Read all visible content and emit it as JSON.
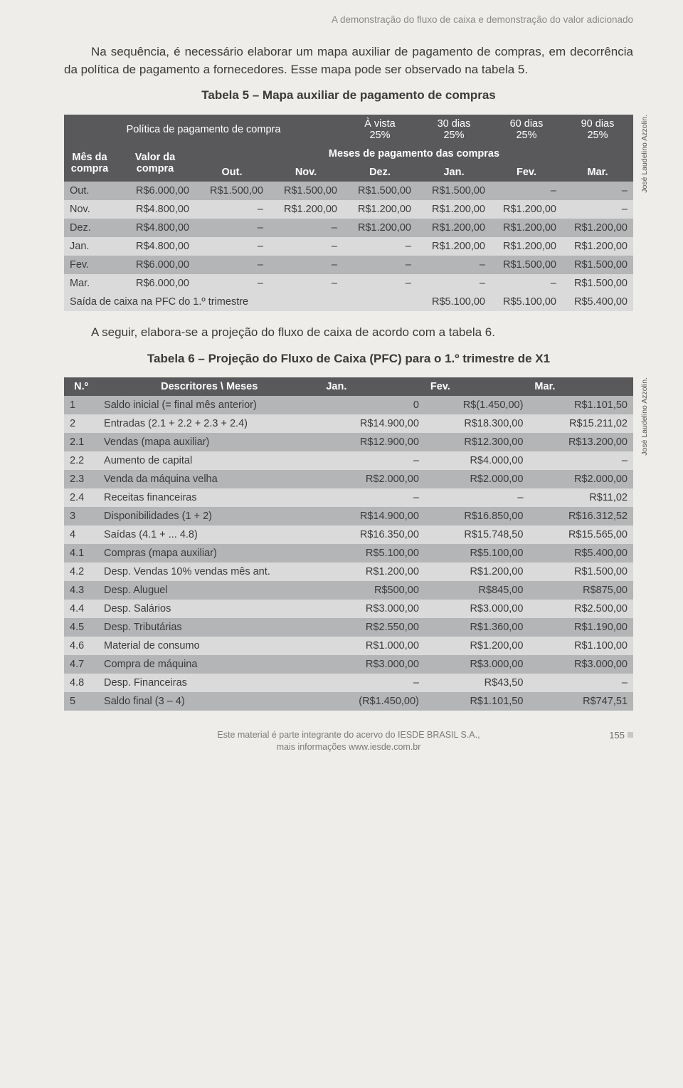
{
  "running_title": "A demonstração do fluxo de caixa e demonstração do valor adicionado",
  "para1": "Na sequência, é necessário elaborar um mapa auxiliar de pagamento de compras, em decorrência da política de pagamento a fornecedores. Esse mapa pode ser observado na tabela 5.",
  "tbl5_caption": "Tabela 5 – Mapa auxiliar de pagamento de compras",
  "credit": "José Laudelino Azzolin.",
  "t5": {
    "hdr_policy": "Política de pagamento de compra",
    "hdr_mes": "Mês da compra",
    "hdr_valor": "Valor da compra",
    "hdr_meses_pag": "Meses de pagamento das compras",
    "terms": [
      {
        "t": "À vista",
        "p": "25%"
      },
      {
        "t": "30 dias",
        "p": "25%"
      },
      {
        "t": "60 dias",
        "p": "25%"
      },
      {
        "t": "90 dias",
        "p": "25%"
      }
    ],
    "month_cols": [
      "Out.",
      "Nov.",
      "Dez.",
      "Jan.",
      "Fev.",
      "Mar."
    ],
    "rows": [
      {
        "m": "Out.",
        "v": "R$6.000,00",
        "c": [
          "R$1.500,00",
          "R$1.500,00",
          "R$1.500,00",
          "R$1.500,00",
          "–",
          "–"
        ]
      },
      {
        "m": "Nov.",
        "v": "R$4.800,00",
        "c": [
          "–",
          "R$1.200,00",
          "R$1.200,00",
          "R$1.200,00",
          "R$1.200,00",
          "–"
        ]
      },
      {
        "m": "Dez.",
        "v": "R$4.800,00",
        "c": [
          "–",
          "–",
          "R$1.200,00",
          "R$1.200,00",
          "R$1.200,00",
          "R$1.200,00"
        ]
      },
      {
        "m": "Jan.",
        "v": "R$4.800,00",
        "c": [
          "–",
          "–",
          "–",
          "R$1.200,00",
          "R$1.200,00",
          "R$1.200,00"
        ]
      },
      {
        "m": "Fev.",
        "v": "R$6.000,00",
        "c": [
          "–",
          "–",
          "–",
          "–",
          "R$1.500,00",
          "R$1.500,00"
        ]
      },
      {
        "m": "Mar.",
        "v": "R$6.000,00",
        "c": [
          "–",
          "–",
          "–",
          "–",
          "–",
          "R$1.500,00"
        ]
      }
    ],
    "saida_label": "Saída de caixa na PFC do 1.º trimestre",
    "saida_vals": [
      "R$5.100,00",
      "R$5.100,00",
      "R$5.400,00"
    ]
  },
  "para2": "A seguir, elabora-se a projeção do fluxo de caixa de acordo com a tabela 6.",
  "tbl6_caption": "Tabela 6 – Projeção do Fluxo de Caixa (PFC) para o 1.º trimestre de X1",
  "t6": {
    "hdr_n": "N.º",
    "hdr_desc": "Descritores \\ Meses",
    "hdr_months": [
      "Jan.",
      "Fev.",
      "Mar."
    ],
    "rows": [
      {
        "n": "1",
        "d": "Saldo inicial (= final mês anterior)",
        "v": [
          "0",
          "R$(1.450,00)",
          "R$1.101,50"
        ]
      },
      {
        "n": "2",
        "d": "Entradas (2.1 + 2.2 + 2.3 + 2.4)",
        "v": [
          "R$14.900,00",
          "R$18.300,00",
          "R$15.211,02"
        ]
      },
      {
        "n": "2.1",
        "d": "Vendas (mapa auxiliar)",
        "v": [
          "R$12.900,00",
          "R$12.300,00",
          "R$13.200,00"
        ]
      },
      {
        "n": "2.2",
        "d": "Aumento de capital",
        "v": [
          "–",
          "R$4.000,00",
          "–"
        ]
      },
      {
        "n": "2.3",
        "d": "Venda da máquina velha",
        "v": [
          "R$2.000,00",
          "R$2.000,00",
          "R$2.000,00"
        ]
      },
      {
        "n": "2.4",
        "d": "Receitas financeiras",
        "v": [
          "–",
          "–",
          "R$11,02"
        ]
      },
      {
        "n": "3",
        "d": "Disponibilidades (1 + 2)",
        "v": [
          "R$14.900,00",
          "R$16.850,00",
          "R$16.312,52"
        ]
      },
      {
        "n": "4",
        "d": "Saídas (4.1 + ... 4.8)",
        "v": [
          "R$16.350,00",
          "R$15.748,50",
          "R$15.565,00"
        ]
      },
      {
        "n": "4.1",
        "d": "Compras (mapa auxiliar)",
        "v": [
          "R$5.100,00",
          "R$5.100,00",
          "R$5.400,00"
        ]
      },
      {
        "n": "4.2",
        "d": "Desp. Vendas 10% vendas mês ant.",
        "v": [
          "R$1.200,00",
          "R$1.200,00",
          "R$1.500,00"
        ]
      },
      {
        "n": "4.3",
        "d": "Desp. Aluguel",
        "v": [
          "R$500,00",
          "R$845,00",
          "R$875,00"
        ]
      },
      {
        "n": "4.4",
        "d": "Desp. Salários",
        "v": [
          "R$3.000,00",
          "R$3.000,00",
          "R$2.500,00"
        ]
      },
      {
        "n": "4.5",
        "d": "Desp. Tributárias",
        "v": [
          "R$2.550,00",
          "R$1.360,00",
          "R$1.190,00"
        ]
      },
      {
        "n": "4.6",
        "d": "Material de consumo",
        "v": [
          "R$1.000,00",
          "R$1.200,00",
          "R$1.100,00"
        ]
      },
      {
        "n": "4.7",
        "d": "Compra de máquina",
        "v": [
          "R$3.000,00",
          "R$3.000,00",
          "R$3.000,00"
        ]
      },
      {
        "n": "4.8",
        "d": "Desp. Financeiras",
        "v": [
          "–",
          "R$43,50",
          "–"
        ]
      },
      {
        "n": "5",
        "d": "Saldo final (3 – 4)",
        "v": [
          "(R$1.450,00)",
          "R$1.101,50",
          "R$747,51"
        ]
      }
    ]
  },
  "footer_l1": "Este material é parte integrante do acervo do IESDE BRASIL S.A.,",
  "footer_l2": "mais informações www.iesde.com.br",
  "page_num": "155"
}
